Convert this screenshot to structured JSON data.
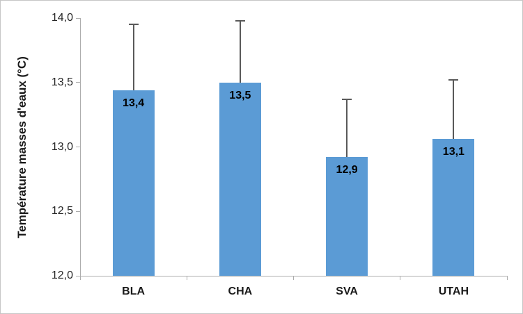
{
  "chart_data": {
    "type": "bar",
    "title": "",
    "categories": [
      "BLA",
      "CHA",
      "SVA",
      "UTAH"
    ],
    "values": [
      13.44,
      13.5,
      12.92,
      13.06
    ],
    "bar_value_labels": [
      "13,4",
      "13,5",
      "12,9",
      "13,1"
    ],
    "error_bar_upper_tops": [
      13.95,
      13.98,
      13.37,
      13.52
    ],
    "xlabel": "",
    "ylabel": "Température masses d'eaux (°C)",
    "ylim": [
      12.0,
      14.0
    ],
    "ytick_step": 0.5,
    "ytick_labels": [
      "12,0",
      "12,5",
      "13,0",
      "13,5",
      "14,0"
    ],
    "grid": false,
    "legend": "none",
    "decimal_separator": ",",
    "colors": {
      "bar": "#5B9BD5",
      "error_bar": "#595959",
      "axis": "#ACACAC",
      "ytick_label": "#262626",
      "value_label": "#000000",
      "category_label": "#1a1a1a",
      "canvas_border": "#C6C6C6",
      "background": "#FFFFFF"
    }
  }
}
